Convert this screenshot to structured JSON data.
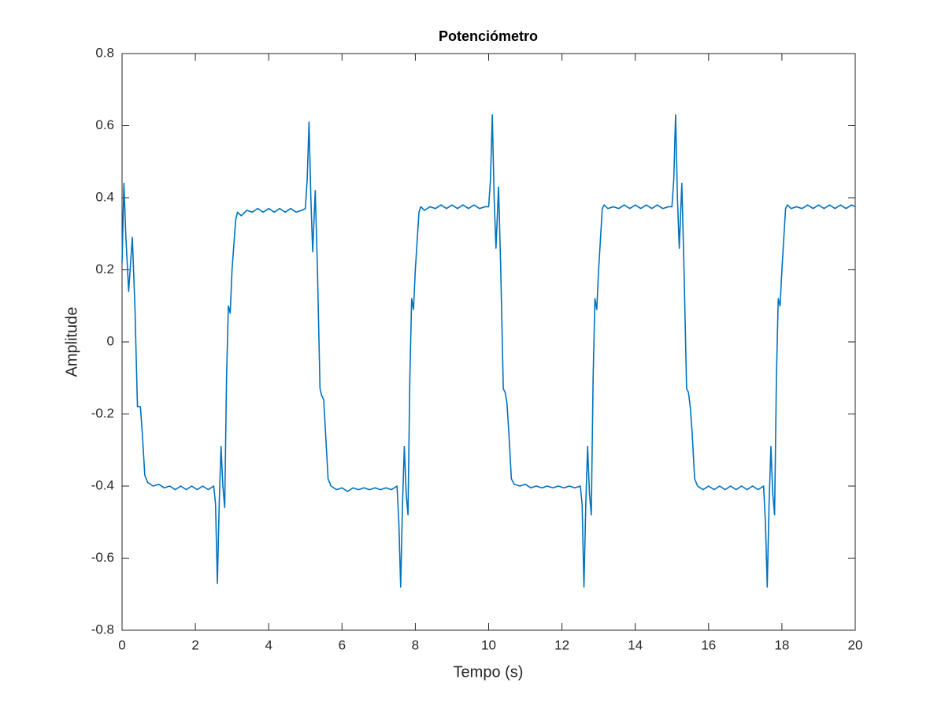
{
  "chart_data": {
    "type": "line",
    "title": "Potenciómetro",
    "x_label": "Tempo (s)",
    "y_label": "Amplitude",
    "xlim": [
      0,
      20
    ],
    "ylim": [
      -0.8,
      0.8
    ],
    "xticks": [
      0,
      2,
      4,
      6,
      8,
      10,
      12,
      14,
      16,
      18,
      20
    ],
    "yticks": [
      -0.8,
      -0.6,
      -0.4,
      -0.2,
      0,
      0.2,
      0.4,
      0.6,
      0.8
    ],
    "grid": false,
    "x": [
      0,
      0.05,
      0.1,
      0.18,
      0.28,
      0.35,
      0.42,
      0.5,
      0.55,
      0.62,
      0.7,
      0.85,
      1.0,
      1.15,
      1.3,
      1.45,
      1.6,
      1.75,
      1.9,
      2.05,
      2.2,
      2.35,
      2.5,
      2.55,
      2.6,
      2.65,
      2.7,
      2.75,
      2.8,
      2.85,
      2.9,
      2.95,
      3.0,
      3.1,
      3.15,
      3.25,
      3.4,
      3.55,
      3.7,
      3.85,
      4.0,
      4.15,
      4.3,
      4.45,
      4.6,
      4.75,
      4.9,
      5.0,
      5.05,
      5.1,
      5.15,
      5.2,
      5.27,
      5.33,
      5.4,
      5.45,
      5.5,
      5.55,
      5.62,
      5.7,
      5.85,
      6.0,
      6.15,
      6.3,
      6.45,
      6.6,
      6.75,
      6.9,
      7.05,
      7.2,
      7.35,
      7.5,
      7.55,
      7.6,
      7.65,
      7.7,
      7.75,
      7.8,
      7.85,
      7.9,
      7.95,
      8.0,
      8.1,
      8.15,
      8.25,
      8.4,
      8.55,
      8.7,
      8.85,
      9.0,
      9.15,
      9.3,
      9.45,
      9.6,
      9.75,
      9.9,
      10.0,
      10.05,
      10.1,
      10.15,
      10.2,
      10.27,
      10.33,
      10.4,
      10.45,
      10.5,
      10.55,
      10.62,
      10.7,
      10.85,
      11.0,
      11.15,
      11.3,
      11.45,
      11.6,
      11.75,
      11.9,
      12.05,
      12.2,
      12.35,
      12.5,
      12.55,
      12.6,
      12.65,
      12.7,
      12.75,
      12.8,
      12.85,
      12.9,
      12.95,
      13.0,
      13.1,
      13.15,
      13.25,
      13.4,
      13.55,
      13.7,
      13.85,
      14.0,
      14.15,
      14.3,
      14.45,
      14.6,
      14.75,
      14.9,
      15.0,
      15.05,
      15.1,
      15.15,
      15.2,
      15.27,
      15.33,
      15.4,
      15.45,
      15.5,
      15.55,
      15.62,
      15.7,
      15.85,
      16.0,
      16.15,
      16.3,
      16.45,
      16.6,
      16.75,
      16.9,
      17.05,
      17.2,
      17.35,
      17.5,
      17.55,
      17.6,
      17.65,
      17.7,
      17.75,
      17.8,
      17.85,
      17.9,
      17.95,
      18.0,
      18.1,
      18.15,
      18.25,
      18.4,
      18.55,
      18.7,
      18.85,
      19.0,
      19.15,
      19.3,
      19.45,
      19.6,
      19.75,
      19.9,
      20.0
    ],
    "series": [
      {
        "color": "#0072bd",
        "values": [
          0.22,
          0.44,
          0.3,
          0.14,
          0.29,
          0.1,
          -0.18,
          -0.18,
          -0.25,
          -0.37,
          -0.39,
          -0.4,
          -0.395,
          -0.405,
          -0.4,
          -0.41,
          -0.4,
          -0.41,
          -0.4,
          -0.41,
          -0.4,
          -0.41,
          -0.4,
          -0.45,
          -0.67,
          -0.45,
          -0.29,
          -0.4,
          -0.46,
          -0.1,
          0.1,
          0.08,
          0.2,
          0.34,
          0.36,
          0.35,
          0.365,
          0.36,
          0.37,
          0.36,
          0.37,
          0.36,
          0.37,
          0.36,
          0.37,
          0.36,
          0.365,
          0.37,
          0.45,
          0.61,
          0.4,
          0.25,
          0.42,
          0.2,
          -0.13,
          -0.15,
          -0.16,
          -0.25,
          -0.38,
          -0.4,
          -0.41,
          -0.405,
          -0.415,
          -0.405,
          -0.41,
          -0.405,
          -0.41,
          -0.405,
          -0.41,
          -0.405,
          -0.41,
          -0.4,
          -0.5,
          -0.68,
          -0.45,
          -0.29,
          -0.42,
          -0.48,
          -0.1,
          0.12,
          0.09,
          0.2,
          0.36,
          0.375,
          0.365,
          0.375,
          0.37,
          0.38,
          0.37,
          0.38,
          0.37,
          0.38,
          0.37,
          0.38,
          0.37,
          0.375,
          0.375,
          0.45,
          0.63,
          0.4,
          0.26,
          0.43,
          0.2,
          -0.13,
          -0.14,
          -0.17,
          -0.25,
          -0.38,
          -0.395,
          -0.4,
          -0.395,
          -0.405,
          -0.4,
          -0.405,
          -0.4,
          -0.405,
          -0.4,
          -0.405,
          -0.4,
          -0.405,
          -0.4,
          -0.45,
          -0.68,
          -0.45,
          -0.29,
          -0.42,
          -0.48,
          -0.1,
          0.12,
          0.09,
          0.2,
          0.37,
          0.38,
          0.37,
          0.375,
          0.37,
          0.38,
          0.37,
          0.38,
          0.37,
          0.38,
          0.37,
          0.38,
          0.37,
          0.375,
          0.375,
          0.45,
          0.63,
          0.4,
          0.26,
          0.44,
          0.2,
          -0.13,
          -0.14,
          -0.18,
          -0.25,
          -0.38,
          -0.4,
          -0.41,
          -0.4,
          -0.41,
          -0.4,
          -0.41,
          -0.4,
          -0.41,
          -0.4,
          -0.41,
          -0.4,
          -0.41,
          -0.4,
          -0.5,
          -0.68,
          -0.45,
          -0.29,
          -0.42,
          -0.48,
          -0.1,
          0.12,
          0.1,
          0.2,
          0.37,
          0.38,
          0.37,
          0.375,
          0.37,
          0.38,
          0.37,
          0.38,
          0.37,
          0.38,
          0.37,
          0.38,
          0.37,
          0.38,
          0.375
        ]
      }
    ]
  }
}
